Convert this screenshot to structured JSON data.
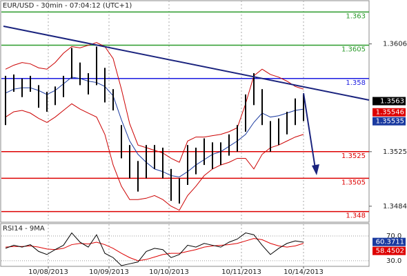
{
  "chart_data": [
    {
      "type": "ohlc",
      "title": "EUR/USD - 30min - 07:04:12 (UTC+1)",
      "ylim": [
        1.3472,
        1.3639
      ],
      "yticks": [
        1.3606,
        1.3525,
        1.3484
      ],
      "high": [
        1.3582,
        1.3583,
        1.358,
        1.3582,
        1.3575,
        1.357,
        1.3574,
        1.3582,
        1.3603,
        1.3592,
        1.3584,
        1.3604,
        1.3588,
        1.3572,
        1.3545,
        1.353,
        1.3518,
        1.353,
        1.353,
        1.3528,
        1.3512,
        1.3505,
        1.353,
        1.3528,
        1.3535,
        1.3532,
        1.3532,
        1.3538,
        1.3545,
        1.3568,
        1.3584,
        1.3572,
        1.3548,
        1.355,
        1.3555,
        1.3565,
        1.3568
      ],
      "low": [
        1.3545,
        1.357,
        1.3566,
        1.357,
        1.3558,
        1.3555,
        1.356,
        1.3566,
        1.358,
        1.3575,
        1.3568,
        1.3575,
        1.3562,
        1.3556,
        1.352,
        1.3505,
        1.3495,
        1.3505,
        1.3512,
        1.3505,
        1.3488,
        1.3486,
        1.35,
        1.3508,
        1.3515,
        1.3512,
        1.3515,
        1.3522,
        1.3525,
        1.354,
        1.356,
        1.3545,
        1.3525,
        1.353,
        1.3538,
        1.3545,
        1.3548
      ],
      "upper": [
        1.3587,
        1.359,
        1.3592,
        1.3591,
        1.3588,
        1.3587,
        1.3592,
        1.3599,
        1.3604,
        1.3603,
        1.3605,
        1.3607,
        1.3604,
        1.3595,
        1.3572,
        1.3546,
        1.353,
        1.3528,
        1.3526,
        1.3524,
        1.352,
        1.3517,
        1.3533,
        1.3536,
        1.3536,
        1.3537,
        1.3538,
        1.354,
        1.3543,
        1.3561,
        1.3582,
        1.3587,
        1.3583,
        1.3581,
        1.3578,
        1.3574,
        1.3572
      ],
      "lower": [
        1.3551,
        1.3555,
        1.3556,
        1.3554,
        1.355,
        1.3547,
        1.3551,
        1.3556,
        1.3561,
        1.3557,
        1.3554,
        1.3551,
        1.3538,
        1.3515,
        1.3499,
        1.3489,
        1.3489,
        1.349,
        1.3492,
        1.3489,
        1.3484,
        1.3481,
        1.3492,
        1.3499,
        1.3507,
        1.3512,
        1.3515,
        1.3517,
        1.352,
        1.352,
        1.3512,
        1.3523,
        1.3528,
        1.353,
        1.3533,
        1.3536,
        1.3538
      ],
      "middle": [
        1.3569,
        1.3572,
        1.3573,
        1.3573,
        1.3571,
        1.3568,
        1.3571,
        1.3576,
        1.3581,
        1.358,
        1.3578,
        1.3577,
        1.3574,
        1.3567,
        1.3549,
        1.3533,
        1.3523,
        1.3517,
        1.3512,
        1.351,
        1.3507,
        1.3506,
        1.351,
        1.3515,
        1.3519,
        1.3523,
        1.3525,
        1.3529,
        1.3533,
        1.3538,
        1.3547,
        1.3554,
        1.3551,
        1.3552,
        1.3554,
        1.3556,
        1.3557
      ],
      "bar_color": "#000000",
      "band_color": "#cc0000",
      "middle_color": "#1a3aa0",
      "levels": [
        {
          "value": 1.363,
          "color": "#2a9a2a"
        },
        {
          "value": 1.3605,
          "color": "#2a9a2a"
        },
        {
          "value": 1.358,
          "color": "#1a1ae0"
        },
        {
          "value": 1.3525,
          "color": "#dd0000"
        },
        {
          "value": 1.3505,
          "color": "#dd0000"
        },
        {
          "value": 1.348,
          "color": "#dd0000"
        }
      ],
      "price_tags": [
        {
          "value": 1.3563,
          "color": "#000000"
        },
        {
          "value": 1.35546,
          "color": "#dd0000"
        },
        {
          "value": 1.35535,
          "color": "#1a3aa0"
        }
      ]
    },
    {
      "type": "line",
      "title": "RSI14 - 9MA",
      "ylim": [
        22,
        89
      ],
      "yticks": [
        {
          "value": 70,
          "label": "70.0"
        },
        {
          "value": 30,
          "label": "30.0"
        }
      ],
      "values": [
        50,
        55,
        52,
        56,
        45,
        40,
        48,
        55,
        75,
        60,
        52,
        72,
        42,
        35,
        22,
        25,
        28,
        45,
        50,
        48,
        35,
        40,
        55,
        52,
        58,
        55,
        52,
        60,
        65,
        75,
        72,
        55,
        40,
        50,
        58,
        62,
        60
      ],
      "ma": [
        52,
        53,
        53,
        54,
        52,
        49,
        48,
        50,
        56,
        58,
        57,
        60,
        56,
        50,
        42,
        35,
        30,
        32,
        36,
        40,
        42,
        42,
        45,
        48,
        52,
        54,
        55,
        56,
        58,
        62,
        66,
        64,
        58,
        54,
        52,
        54,
        58
      ],
      "color": "#000000",
      "ma_color": "#dd0000",
      "price_tags": [
        {
          "value": 60.3711,
          "color": "#1a3aa0"
        },
        {
          "value": 58.4502,
          "color": "#dd0000"
        }
      ],
      "x_labels": [
        "10/08/2013",
        "10/09/2013",
        "10/10/2013",
        "10/11/2013",
        "10/14/2013"
      ]
    }
  ]
}
